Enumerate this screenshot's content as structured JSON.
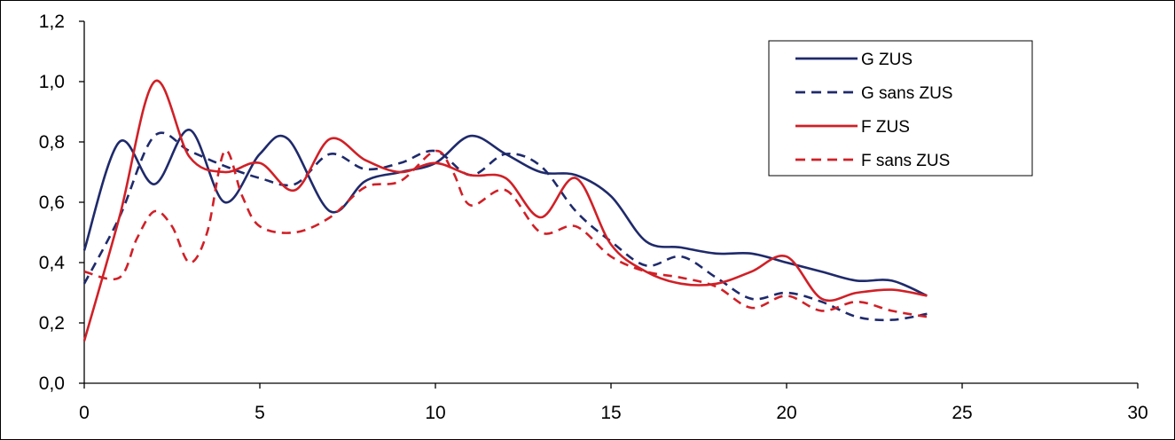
{
  "chart_data": {
    "type": "line",
    "title": "",
    "xlabel": "",
    "ylabel": "",
    "xlim": [
      0,
      30
    ],
    "ylim": [
      0,
      1.2
    ],
    "x_ticks": [
      "0",
      "5",
      "10",
      "15",
      "20",
      "25",
      "30"
    ],
    "y_ticks": [
      "0,0",
      "0,2",
      "0,4",
      "0,6",
      "0,8",
      "1,0",
      "1,2"
    ],
    "grid": false,
    "legend_position": "top-right",
    "series": [
      {
        "name": "G ZUS",
        "color": "#1F2A6B",
        "dash": "solid",
        "x": [
          0,
          1,
          2,
          3,
          4,
          5,
          5.8,
          7,
          8,
          9,
          10,
          11,
          12,
          13,
          14,
          15,
          16,
          17,
          18,
          19,
          20,
          21,
          22,
          23,
          24
        ],
        "y": [
          0.44,
          0.8,
          0.66,
          0.84,
          0.6,
          0.76,
          0.81,
          0.57,
          0.67,
          0.7,
          0.73,
          0.82,
          0.76,
          0.7,
          0.69,
          0.62,
          0.47,
          0.45,
          0.43,
          0.43,
          0.4,
          0.37,
          0.34,
          0.34,
          0.29
        ]
      },
      {
        "name": "G sans ZUS",
        "color": "#1F2A6B",
        "dash": "dashed",
        "x": [
          0,
          1,
          2,
          3,
          4,
          5,
          6,
          7,
          8,
          9,
          10,
          11,
          12,
          13,
          14,
          15,
          16,
          17,
          18,
          19,
          20,
          21,
          22,
          23,
          24
        ],
        "y": [
          0.33,
          0.55,
          0.82,
          0.77,
          0.72,
          0.68,
          0.66,
          0.76,
          0.71,
          0.73,
          0.77,
          0.69,
          0.76,
          0.72,
          0.57,
          0.47,
          0.39,
          0.42,
          0.35,
          0.28,
          0.3,
          0.27,
          0.22,
          0.21,
          0.23
        ]
      },
      {
        "name": "F ZUS",
        "color": "#D02027",
        "dash": "solid",
        "x": [
          0,
          1,
          2,
          3,
          4,
          5,
          6,
          7,
          8,
          9,
          10,
          11,
          12,
          13,
          14,
          15,
          16,
          17,
          18,
          19,
          20,
          21,
          22,
          23,
          24
        ],
        "y": [
          0.14,
          0.55,
          1.0,
          0.75,
          0.7,
          0.73,
          0.64,
          0.81,
          0.74,
          0.7,
          0.73,
          0.69,
          0.68,
          0.55,
          0.68,
          0.46,
          0.37,
          0.33,
          0.33,
          0.37,
          0.42,
          0.28,
          0.3,
          0.31,
          0.29
        ]
      },
      {
        "name": "F sans ZUS",
        "color": "#D02027",
        "dash": "dashed",
        "x": [
          0,
          1,
          1.5,
          2,
          2.5,
          3,
          3.5,
          4,
          4.5,
          5,
          6,
          7,
          8,
          9,
          10,
          10.5,
          11,
          12,
          13,
          14,
          15,
          16,
          17,
          18,
          19,
          20,
          21,
          22,
          23,
          24
        ],
        "y": [
          0.37,
          0.35,
          0.48,
          0.57,
          0.52,
          0.4,
          0.5,
          0.77,
          0.62,
          0.52,
          0.5,
          0.55,
          0.65,
          0.67,
          0.77,
          0.7,
          0.59,
          0.64,
          0.5,
          0.52,
          0.42,
          0.37,
          0.35,
          0.32,
          0.25,
          0.29,
          0.24,
          0.27,
          0.24,
          0.22
        ]
      }
    ]
  }
}
